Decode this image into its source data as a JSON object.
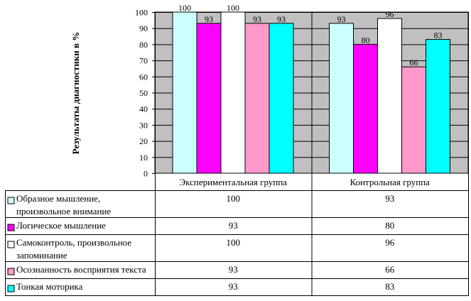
{
  "chart_data": {
    "type": "bar",
    "title": "",
    "xlabel": "",
    "ylabel": "Результаты диагностики в %",
    "ylim": [
      0,
      100
    ],
    "yticks": [
      0,
      10,
      20,
      30,
      40,
      50,
      60,
      70,
      80,
      90,
      100
    ],
    "grid": true,
    "legend": "data-table",
    "categories": [
      "Экспериментальная группа",
      "Контрольная группа"
    ],
    "series": [
      {
        "name": "Образное мышление, произвольное внимание",
        "name_lines": [
          "Образное мышление,",
          "произвольное внимание"
        ],
        "color": "#ccffff",
        "values": [
          100,
          93
        ]
      },
      {
        "name": "Логическое мышление",
        "name_lines": [
          "Логическое мышление"
        ],
        "color": "#ff00ff",
        "values": [
          93,
          80
        ]
      },
      {
        "name": "Самоконтроль, произвольное запоминание",
        "name_lines": [
          "Самоконтроль, произвольное",
          "запоминание"
        ],
        "color": "#ffffff",
        "values": [
          100,
          96
        ]
      },
      {
        "name": "Осознанность восприятия текста",
        "name_lines": [
          "Осознанность восприятия текста"
        ],
        "color": "#ff99cc",
        "values": [
          93,
          66
        ]
      },
      {
        "name": "Тонкая моторика",
        "name_lines": [
          "Тонкая моторика"
        ],
        "color": "#00ffff",
        "values": [
          93,
          83
        ]
      }
    ],
    "plot_background": "#c0c0c0"
  }
}
